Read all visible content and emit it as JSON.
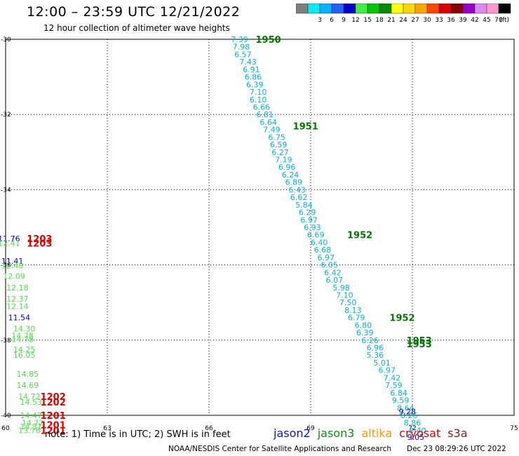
{
  "header": {
    "title": "12:00 – 23:59 UTC 12/21/2022",
    "subtitle": "12 hour collection of altimeter wave heights"
  },
  "colorbar": {
    "unit": "(ft)",
    "swatches": [
      {
        "color": "#7f7f7f",
        "label": ""
      },
      {
        "color": "#00eeee",
        "label": "3"
      },
      {
        "color": "#00b4ff",
        "label": "6"
      },
      {
        "color": "#2060ff",
        "label": "9"
      },
      {
        "color": "#0000cd",
        "label": "12"
      },
      {
        "color": "#40ee40",
        "label": "15"
      },
      {
        "color": "#00c800",
        "label": "18"
      },
      {
        "color": "#008c00",
        "label": "21"
      },
      {
        "color": "#ffff00",
        "label": "24"
      },
      {
        "color": "#ffd700",
        "label": "27"
      },
      {
        "color": "#ffa500",
        "label": "30"
      },
      {
        "color": "#ff4500",
        "label": "33"
      },
      {
        "color": "#dd0000",
        "label": "36"
      },
      {
        "color": "#8b0000",
        "label": "39"
      },
      {
        "color": "#9900cc",
        "label": "42"
      },
      {
        "color": "#dd88ee",
        "label": "45"
      },
      {
        "color": "#ff99cc",
        "label": "70"
      },
      {
        "color": "#000000",
        "label": ""
      }
    ]
  },
  "footer": {
    "note": "note:  1) Time is in UTC;  2) SWH is in feet",
    "credit": "NOAA/NESDIS Center for Satellite Applications and Research",
    "timestamp": "Dec 23 08:29:26 UTC 2022",
    "sources": [
      {
        "name": "jason2",
        "color": "#1010dd"
      },
      {
        "name": "jason3",
        "color": "#109010"
      },
      {
        "name": "altika",
        "color": "#ff9900"
      },
      {
        "name": "cryosat",
        "color": "#dd0000"
      },
      {
        "name": "s3a",
        "color": "#8b1a1a"
      }
    ]
  },
  "chart_data": {
    "type": "scatter",
    "xlim": [
      60,
      75
    ],
    "ylim": [
      -40,
      -30
    ],
    "x_ticks": [
      60,
      63,
      66,
      69,
      72,
      75
    ],
    "y_ticks": [
      -30,
      -32,
      -34,
      -36,
      -38,
      -40
    ],
    "x_tick_labels": [
      "60",
      "63",
      "66",
      "69",
      "72",
      "75"
    ],
    "y_tick_labels": [
      "-30",
      "-32",
      "-34",
      "-36",
      "-38",
      "-40"
    ],
    "grid": true,
    "colors": {
      "cyan": "#00b4dc",
      "green": "#50e050",
      "blue": "#0000c8",
      "darkgreen": "#007800",
      "red": "#dd0000"
    },
    "points": [
      {
        "x": 66.9,
        "y": -30.0,
        "label": "7.39",
        "color": "cyan"
      },
      {
        "x": 66.95,
        "y": -30.2,
        "label": "7.98",
        "color": "cyan"
      },
      {
        "x": 67.0,
        "y": -30.4,
        "label": "6.57",
        "color": "cyan"
      },
      {
        "x": 67.15,
        "y": -30.6,
        "label": "7.43",
        "color": "cyan"
      },
      {
        "x": 67.25,
        "y": -30.8,
        "label": "6.91",
        "color": "cyan"
      },
      {
        "x": 67.3,
        "y": -31.0,
        "label": "6.86",
        "color": "cyan"
      },
      {
        "x": 67.35,
        "y": -31.2,
        "label": "6.39",
        "color": "cyan"
      },
      {
        "x": 67.45,
        "y": -31.4,
        "label": "7.10",
        "color": "cyan"
      },
      {
        "x": 67.45,
        "y": -31.6,
        "label": "6.10",
        "color": "cyan"
      },
      {
        "x": 67.55,
        "y": -31.8,
        "label": "6.66",
        "color": "cyan"
      },
      {
        "x": 67.65,
        "y": -32.0,
        "label": "6.81",
        "color": "cyan"
      },
      {
        "x": 67.75,
        "y": -32.2,
        "label": "6.64",
        "color": "cyan"
      },
      {
        "x": 67.85,
        "y": -32.4,
        "label": "7.49",
        "color": "cyan"
      },
      {
        "x": 68.0,
        "y": -32.6,
        "label": "6.75",
        "color": "cyan"
      },
      {
        "x": 68.05,
        "y": -32.8,
        "label": "6.59",
        "color": "cyan"
      },
      {
        "x": 68.1,
        "y": -33.0,
        "label": "6.27",
        "color": "cyan"
      },
      {
        "x": 68.2,
        "y": -33.2,
        "label": "7.19",
        "color": "cyan"
      },
      {
        "x": 68.3,
        "y": -33.4,
        "label": "6.96",
        "color": "cyan"
      },
      {
        "x": 68.4,
        "y": -33.6,
        "label": "6.24",
        "color": "cyan"
      },
      {
        "x": 68.5,
        "y": -33.8,
        "label": "6.89",
        "color": "cyan"
      },
      {
        "x": 68.6,
        "y": -34.0,
        "label": "6.43",
        "color": "cyan"
      },
      {
        "x": 68.65,
        "y": -34.2,
        "label": "6.62",
        "color": "cyan"
      },
      {
        "x": 68.8,
        "y": -34.4,
        "label": "5.84",
        "color": "cyan"
      },
      {
        "x": 68.9,
        "y": -34.6,
        "label": "6.29",
        "color": "cyan"
      },
      {
        "x": 68.95,
        "y": -34.8,
        "label": "6.97",
        "color": "cyan"
      },
      {
        "x": 69.05,
        "y": -35.0,
        "label": "6.93",
        "color": "cyan"
      },
      {
        "x": 69.15,
        "y": -35.2,
        "label": "6.69",
        "color": "cyan"
      },
      {
        "x": 69.25,
        "y": -35.4,
        "label": "6.40",
        "color": "cyan"
      },
      {
        "x": 69.35,
        "y": -35.6,
        "label": "6.68",
        "color": "cyan"
      },
      {
        "x": 69.45,
        "y": -35.8,
        "label": "6.97",
        "color": "cyan"
      },
      {
        "x": 69.55,
        "y": -36.0,
        "label": "6.05",
        "color": "cyan"
      },
      {
        "x": 69.65,
        "y": -36.2,
        "label": "6.42",
        "color": "cyan"
      },
      {
        "x": 69.7,
        "y": -36.4,
        "label": "6.07",
        "color": "cyan"
      },
      {
        "x": 69.9,
        "y": -36.6,
        "label": "5.98",
        "color": "cyan"
      },
      {
        "x": 70.0,
        "y": -36.8,
        "label": "7.10",
        "color": "cyan"
      },
      {
        "x": 70.1,
        "y": -37.0,
        "label": "7.50",
        "color": "cyan"
      },
      {
        "x": 70.25,
        "y": -37.2,
        "label": "8.13",
        "color": "cyan"
      },
      {
        "x": 70.35,
        "y": -37.4,
        "label": "6.79",
        "color": "cyan"
      },
      {
        "x": 70.55,
        "y": -37.6,
        "label": "6.80",
        "color": "cyan"
      },
      {
        "x": 70.6,
        "y": -37.8,
        "label": "6.39",
        "color": "cyan"
      },
      {
        "x": 70.75,
        "y": -38.0,
        "label": "6.26",
        "color": "cyan"
      },
      {
        "x": 70.9,
        "y": -38.2,
        "label": "6.96",
        "color": "cyan"
      },
      {
        "x": 70.9,
        "y": -38.4,
        "label": "5.36",
        "color": "cyan"
      },
      {
        "x": 71.1,
        "y": -38.6,
        "label": "5.01",
        "color": "cyan"
      },
      {
        "x": 71.25,
        "y": -38.8,
        "label": "6.97",
        "color": "cyan"
      },
      {
        "x": 71.4,
        "y": -39.0,
        "label": "7.42",
        "color": "cyan"
      },
      {
        "x": 71.45,
        "y": -39.2,
        "label": "7.59",
        "color": "cyan"
      },
      {
        "x": 71.6,
        "y": -39.4,
        "label": "6.84",
        "color": "cyan"
      },
      {
        "x": 71.65,
        "y": -39.6,
        "label": "9.59",
        "color": "cyan"
      },
      {
        "x": 71.8,
        "y": -39.8,
        "label": "8.64",
        "color": "cyan"
      },
      {
        "x": 71.9,
        "y": -40.0,
        "label": "8.26",
        "color": "cyan"
      },
      {
        "x": 72.0,
        "y": -40.2,
        "label": "8.86",
        "color": "cyan"
      },
      {
        "x": 72.15,
        "y": -40.4,
        "label": "8.40",
        "color": "cyan"
      },
      {
        "x": 72.1,
        "y": -40.58,
        "label": "9.05",
        "color": "blue"
      },
      {
        "x": 71.85,
        "y": -39.9,
        "label": "9.28",
        "color": "blue"
      },
      {
        "x": 60.1,
        "y": -35.3,
        "label": "11.76",
        "color": "blue"
      },
      {
        "x": 60.1,
        "y": -35.42,
        "label": "12.41",
        "color": "green"
      },
      {
        "x": 60.2,
        "y": -35.9,
        "label": "11.41",
        "color": "blue"
      },
      {
        "x": 60.2,
        "y": -36.02,
        "label": "12.48",
        "color": "green"
      },
      {
        "x": 60.25,
        "y": -36.3,
        "label": "12.09",
        "color": "green"
      },
      {
        "x": 60.35,
        "y": -36.6,
        "label": "12.18",
        "color": "green"
      },
      {
        "x": 60.35,
        "y": -36.9,
        "label": "12.37",
        "color": "green"
      },
      {
        "x": 60.35,
        "y": -37.1,
        "label": "12.14",
        "color": "green"
      },
      {
        "x": 60.4,
        "y": -37.4,
        "label": "11.54",
        "color": "blue"
      },
      {
        "x": 60.55,
        "y": -37.7,
        "label": "14.30",
        "color": "green"
      },
      {
        "x": 60.5,
        "y": -37.88,
        "label": "14.78",
        "color": "green"
      },
      {
        "x": 60.5,
        "y": -37.98,
        "label": "14.78",
        "color": "green"
      },
      {
        "x": 60.55,
        "y": -38.25,
        "label": "14.25",
        "color": "green"
      },
      {
        "x": 60.55,
        "y": -38.4,
        "label": "16.05",
        "color": "green"
      },
      {
        "x": 60.65,
        "y": -38.9,
        "label": "14.85",
        "color": "green"
      },
      {
        "x": 60.65,
        "y": -39.2,
        "label": "14.69",
        "color": "green"
      },
      {
        "x": 60.7,
        "y": -39.5,
        "label": "14.72",
        "color": "green"
      },
      {
        "x": 60.75,
        "y": -39.65,
        "label": "14.53",
        "color": "green"
      },
      {
        "x": 60.75,
        "y": -40.0,
        "label": "14.47",
        "color": "green"
      },
      {
        "x": 60.8,
        "y": -40.2,
        "label": "14.72",
        "color": "green"
      },
      {
        "x": 60.75,
        "y": -40.3,
        "label": "14.31",
        "color": "green"
      },
      {
        "x": 60.7,
        "y": -40.4,
        "label": "13.76",
        "color": "green"
      }
    ],
    "time_labels": [
      {
        "x": 67.75,
        "y": -30.0,
        "label": "1950",
        "color": "darkgreen"
      },
      {
        "x": 68.85,
        "y": -32.3,
        "label": "1951",
        "color": "darkgreen"
      },
      {
        "x": 70.45,
        "y": -35.2,
        "label": "1952",
        "color": "darkgreen"
      },
      {
        "x": 71.7,
        "y": -37.4,
        "label": "1952",
        "color": "darkgreen"
      },
      {
        "x": 72.2,
        "y": -38.0,
        "label": "1953",
        "color": "darkgreen"
      },
      {
        "x": 72.2,
        "y": -38.1,
        "label": "1953",
        "color": "darkgreen"
      },
      {
        "x": 61.0,
        "y": -35.3,
        "label": "1203",
        "color": "red"
      },
      {
        "x": 61.0,
        "y": -35.42,
        "label": "1203",
        "color": "red"
      },
      {
        "x": 61.4,
        "y": -39.5,
        "label": "1202",
        "color": "red"
      },
      {
        "x": 61.4,
        "y": -39.65,
        "label": "1202",
        "color": "red"
      },
      {
        "x": 61.4,
        "y": -40.0,
        "label": "1201",
        "color": "red"
      },
      {
        "x": 61.4,
        "y": -40.25,
        "label": "1201",
        "color": "red"
      },
      {
        "x": 61.4,
        "y": -40.4,
        "label": "1201",
        "color": "red"
      }
    ]
  }
}
